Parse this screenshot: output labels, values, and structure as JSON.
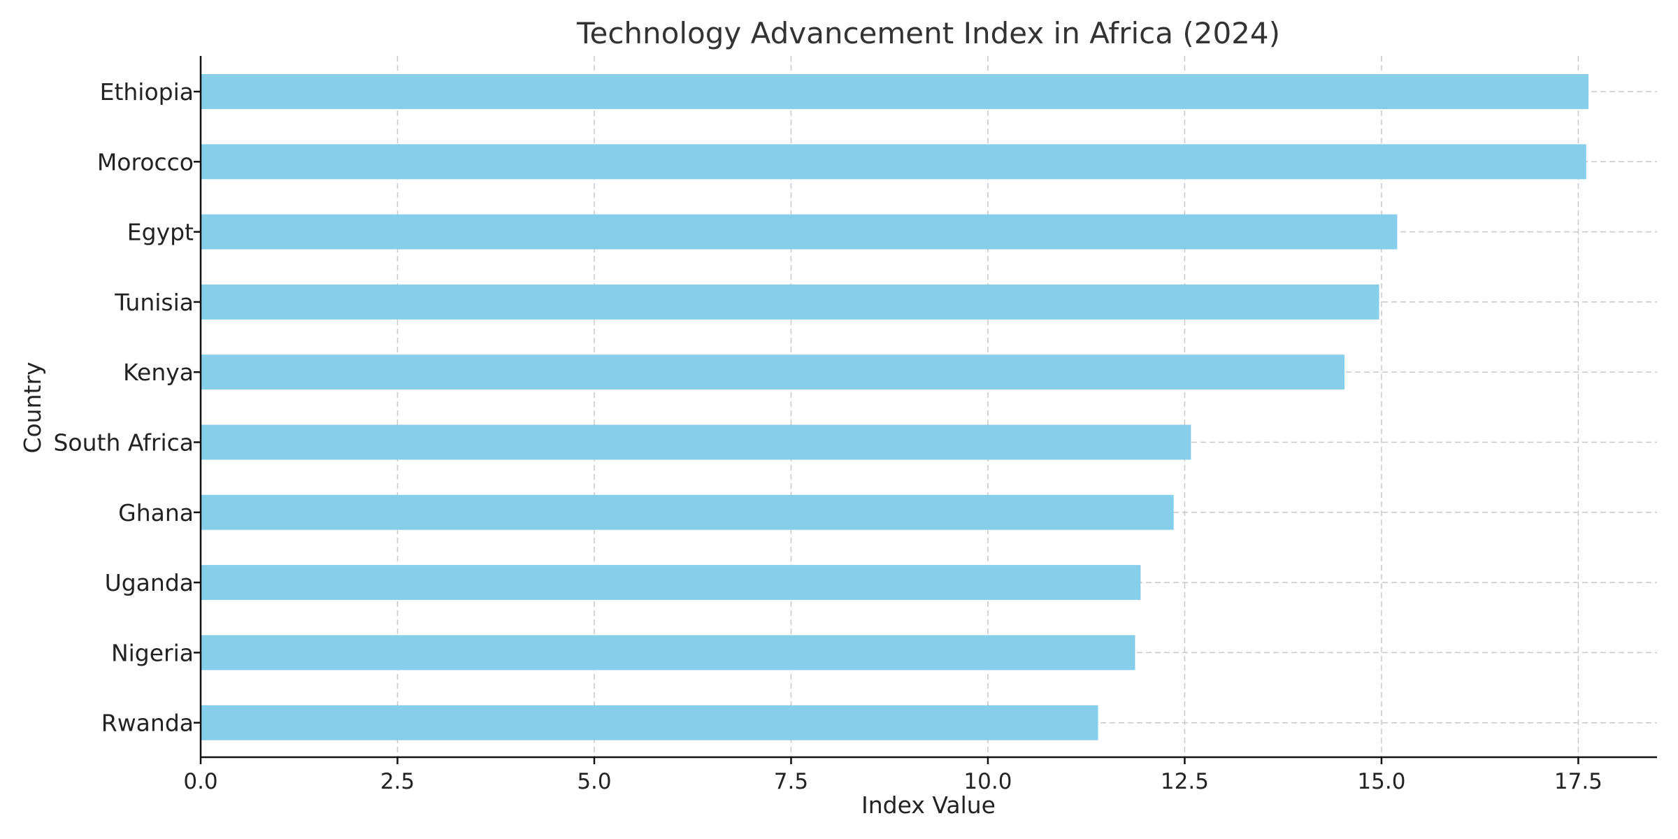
{
  "chart_data": {
    "type": "bar",
    "orientation": "horizontal",
    "title": "Technology Advancement Index in Africa (2024)",
    "xlabel": "Index Value",
    "ylabel": "Country",
    "categories": [
      "Ethiopia",
      "Morocco",
      "Egypt",
      "Tunisia",
      "Kenya",
      "South Africa",
      "Ghana",
      "Uganda",
      "Nigeria",
      "Rwanda"
    ],
    "values": [
      17.63,
      17.6,
      15.2,
      14.97,
      14.53,
      12.58,
      12.36,
      11.94,
      11.87,
      11.4
    ],
    "xlim": [
      0,
      18.5
    ],
    "xticks": [
      "0.0",
      "2.5",
      "5.0",
      "7.5",
      "10.0",
      "12.5",
      "15.0",
      "17.5"
    ],
    "grid": true,
    "bar_color": "#87ceeb"
  }
}
